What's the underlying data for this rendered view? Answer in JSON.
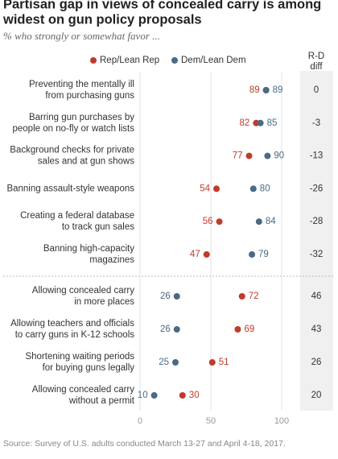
{
  "chart_data": {
    "type": "dot",
    "title": [
      "Partisan gap in views of concealed carry is among",
      "widest on gun policy proposals"
    ],
    "subtitle": "% who strongly or somewhat favor ...",
    "categories": [
      [
        "Preventing the mentally ill",
        "from purchasing guns"
      ],
      [
        "Barring gun purchases by",
        "people on no-fly or watch lists"
      ],
      [
        "Background checks for private",
        "sales and at gun shows"
      ],
      [
        "Banning assault-style weapons"
      ],
      [
        "Creating a federal database",
        "to track gun sales"
      ],
      [
        "Banning high-capacity",
        "magazines"
      ],
      [
        "Allowing concealed carry",
        "in more places"
      ],
      [
        "Allowing teachers and officials",
        "to carry guns in K-12 schools"
      ],
      [
        "Shortening waiting periods",
        "for buying guns legally"
      ],
      [
        "Allowing concealed carry",
        "without a permit"
      ]
    ],
    "series": [
      {
        "name": "Rep/Lean Rep",
        "color": "#bf3b2b",
        "values": [
          89,
          82,
          77,
          54,
          56,
          47,
          72,
          69,
          51,
          30
        ]
      },
      {
        "name": "Dem/Lean Dem",
        "color": "#4a6a85",
        "values": [
          89,
          85,
          90,
          80,
          84,
          79,
          26,
          26,
          25,
          10
        ]
      }
    ],
    "diff_header": [
      "R-D",
      "diff"
    ],
    "diff": [
      0,
      -3,
      -13,
      -26,
      -28,
      -32,
      46,
      43,
      26,
      20
    ],
    "xlim": [
      0,
      100
    ],
    "xticks": [
      0,
      50,
      100
    ],
    "grid": true,
    "source": "Source: Survey of U.S. adults conducted March 13-27 and April 4-18, 2017."
  }
}
